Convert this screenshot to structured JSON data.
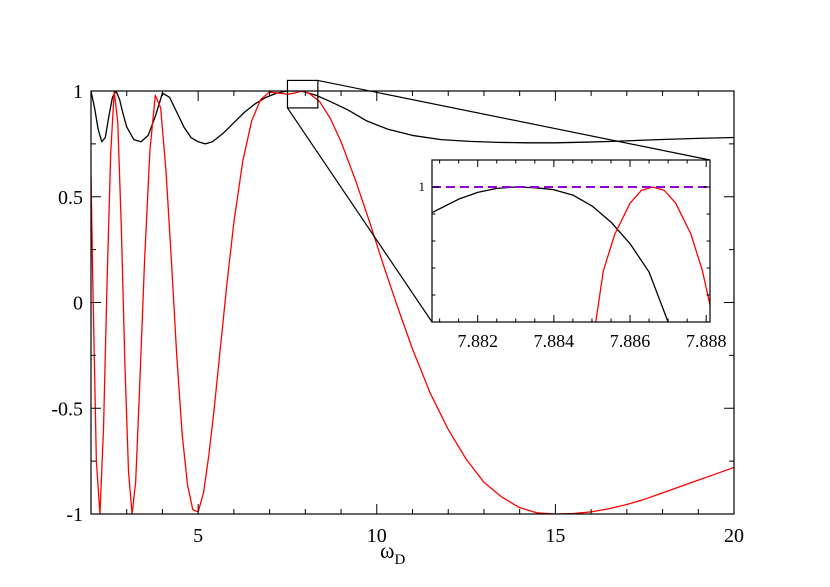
{
  "chart_data": [
    {
      "type": "line",
      "title": "",
      "xlabel": "ω",
      "xlabel_subscript": "D",
      "ylabel": "",
      "xlim": [
        2,
        20
      ],
      "ylim": [
        -1,
        1
      ],
      "x_ticks": [
        {
          "value": 5,
          "label": "5"
        },
        {
          "value": 10,
          "label": "10"
        },
        {
          "value": 15,
          "label": "15"
        },
        {
          "value": 20,
          "label": "20"
        }
      ],
      "y_ticks": [
        {
          "value": -1,
          "label": "-1"
        },
        {
          "value": -0.5,
          "label": "-0.5"
        },
        {
          "value": 0,
          "label": "0"
        },
        {
          "value": 0.5,
          "label": "0.5"
        },
        {
          "value": 1,
          "label": "1"
        }
      ],
      "grid": false,
      "legend": "none",
      "series": [
        {
          "color": "#000000",
          "x": [
            2.0,
            2.1,
            2.2,
            2.3,
            2.4,
            2.5,
            2.6,
            2.7,
            2.8,
            2.9,
            3.0,
            3.2,
            3.4,
            3.6,
            3.8,
            4.0,
            4.2,
            4.4,
            4.6,
            4.8,
            5.0,
            5.2,
            5.4,
            5.7,
            6.0,
            6.3,
            6.6,
            6.9,
            7.2,
            7.5,
            7.88,
            8.3,
            8.7,
            9.2,
            9.7,
            10.3,
            11.0,
            11.8,
            12.6,
            13.4,
            14.2,
            15.0,
            15.8,
            16.6,
            17.4,
            18.2,
            19.0,
            20.0
          ],
          "y": [
            1.0,
            0.92,
            0.82,
            0.76,
            0.78,
            0.88,
            0.97,
            1.0,
            0.96,
            0.89,
            0.83,
            0.77,
            0.76,
            0.79,
            0.88,
            0.99,
            0.97,
            0.9,
            0.83,
            0.78,
            0.76,
            0.75,
            0.76,
            0.8,
            0.85,
            0.9,
            0.94,
            0.97,
            0.99,
            1.0,
            1.0,
            0.98,
            0.95,
            0.91,
            0.86,
            0.82,
            0.79,
            0.77,
            0.762,
            0.757,
            0.755,
            0.755,
            0.758,
            0.762,
            0.767,
            0.772,
            0.776,
            0.78
          ]
        },
        {
          "color": "#ff0000",
          "x": [
            2.0,
            2.05,
            2.15,
            2.25,
            2.35,
            2.45,
            2.55,
            2.65,
            2.75,
            2.85,
            2.95,
            3.05,
            3.15,
            3.25,
            3.35,
            3.5,
            3.65,
            3.8,
            3.95,
            4.1,
            4.25,
            4.4,
            4.55,
            4.7,
            4.85,
            5.0,
            5.15,
            5.3,
            5.45,
            5.6,
            5.8,
            6.0,
            6.25,
            6.5,
            6.75,
            7.0,
            7.25,
            7.5,
            7.7,
            7.887,
            8.1,
            8.4,
            8.7,
            9.0,
            9.4,
            9.8,
            10.2,
            10.6,
            11.0,
            11.5,
            12.0,
            12.5,
            13.0,
            13.5,
            14.0,
            14.5,
            15.0,
            15.5,
            16.0,
            16.5,
            17.0,
            17.5,
            18.0,
            18.5,
            19.0,
            19.5,
            20.0
          ],
          "y": [
            0.6,
            0.1,
            -0.75,
            -1.0,
            -0.6,
            0.1,
            0.7,
            1.0,
            0.85,
            0.35,
            -0.3,
            -0.8,
            -1.0,
            -0.85,
            -0.45,
            0.2,
            0.72,
            0.98,
            0.92,
            0.62,
            0.2,
            -0.25,
            -0.62,
            -0.86,
            -0.98,
            -0.99,
            -0.9,
            -0.72,
            -0.5,
            -0.25,
            0.08,
            0.38,
            0.67,
            0.86,
            0.96,
            0.995,
            0.99,
            0.985,
            0.99,
            1.0,
            0.99,
            0.95,
            0.87,
            0.76,
            0.58,
            0.38,
            0.17,
            -0.03,
            -0.22,
            -0.43,
            -0.6,
            -0.74,
            -0.85,
            -0.92,
            -0.97,
            -0.995,
            -1.0,
            -0.998,
            -0.99,
            -0.975,
            -0.955,
            -0.93,
            -0.9,
            -0.87,
            -0.84,
            -0.81,
            -0.78
          ]
        }
      ],
      "zoom_box": {
        "x": [
          7.5,
          8.35
        ],
        "y": [
          0.92,
          1.05
        ]
      }
    },
    {
      "type": "line",
      "title": "",
      "xlabel": "",
      "ylabel": "",
      "xlim": [
        7.8808,
        7.8881
      ],
      "ylim": [
        0.99,
        1.002
      ],
      "x_ticks": [
        {
          "value": 7.882,
          "label": "7.882"
        },
        {
          "value": 7.884,
          "label": "7.884"
        },
        {
          "value": 7.886,
          "label": "7.886"
        },
        {
          "value": 7.888,
          "label": "7.888"
        }
      ],
      "y_ticks": [
        {
          "value": 1,
          "label": "1"
        }
      ],
      "grid": false,
      "legend": "none",
      "series": [
        {
          "color": "#000000",
          "x": [
            7.8808,
            7.8815,
            7.882,
            7.8825,
            7.883,
            7.8835,
            7.884,
            7.8845,
            7.885,
            7.8855,
            7.886,
            7.8865,
            7.887
          ],
          "y": [
            0.9981,
            0.9991,
            0.9996,
            0.9999,
            1.0,
            0.99995,
            0.9998,
            0.9994,
            0.9986,
            0.9974,
            0.9958,
            0.9937,
            0.99
          ]
        },
        {
          "color": "#ff0000",
          "x": [
            7.8851,
            7.8853,
            7.8856,
            7.886,
            7.8863,
            7.8866,
            7.8869,
            7.8872,
            7.8876,
            7.8879,
            7.8882
          ],
          "y": [
            0.99,
            0.9938,
            0.9965,
            0.9988,
            0.99975,
            1.0,
            0.99975,
            0.9988,
            0.9965,
            0.9938,
            0.99
          ]
        },
        {
          "color": "#9400d3",
          "dashed": true,
          "x": [
            7.8808,
            7.8881
          ],
          "y": [
            1.0,
            1.0
          ]
        }
      ]
    }
  ]
}
